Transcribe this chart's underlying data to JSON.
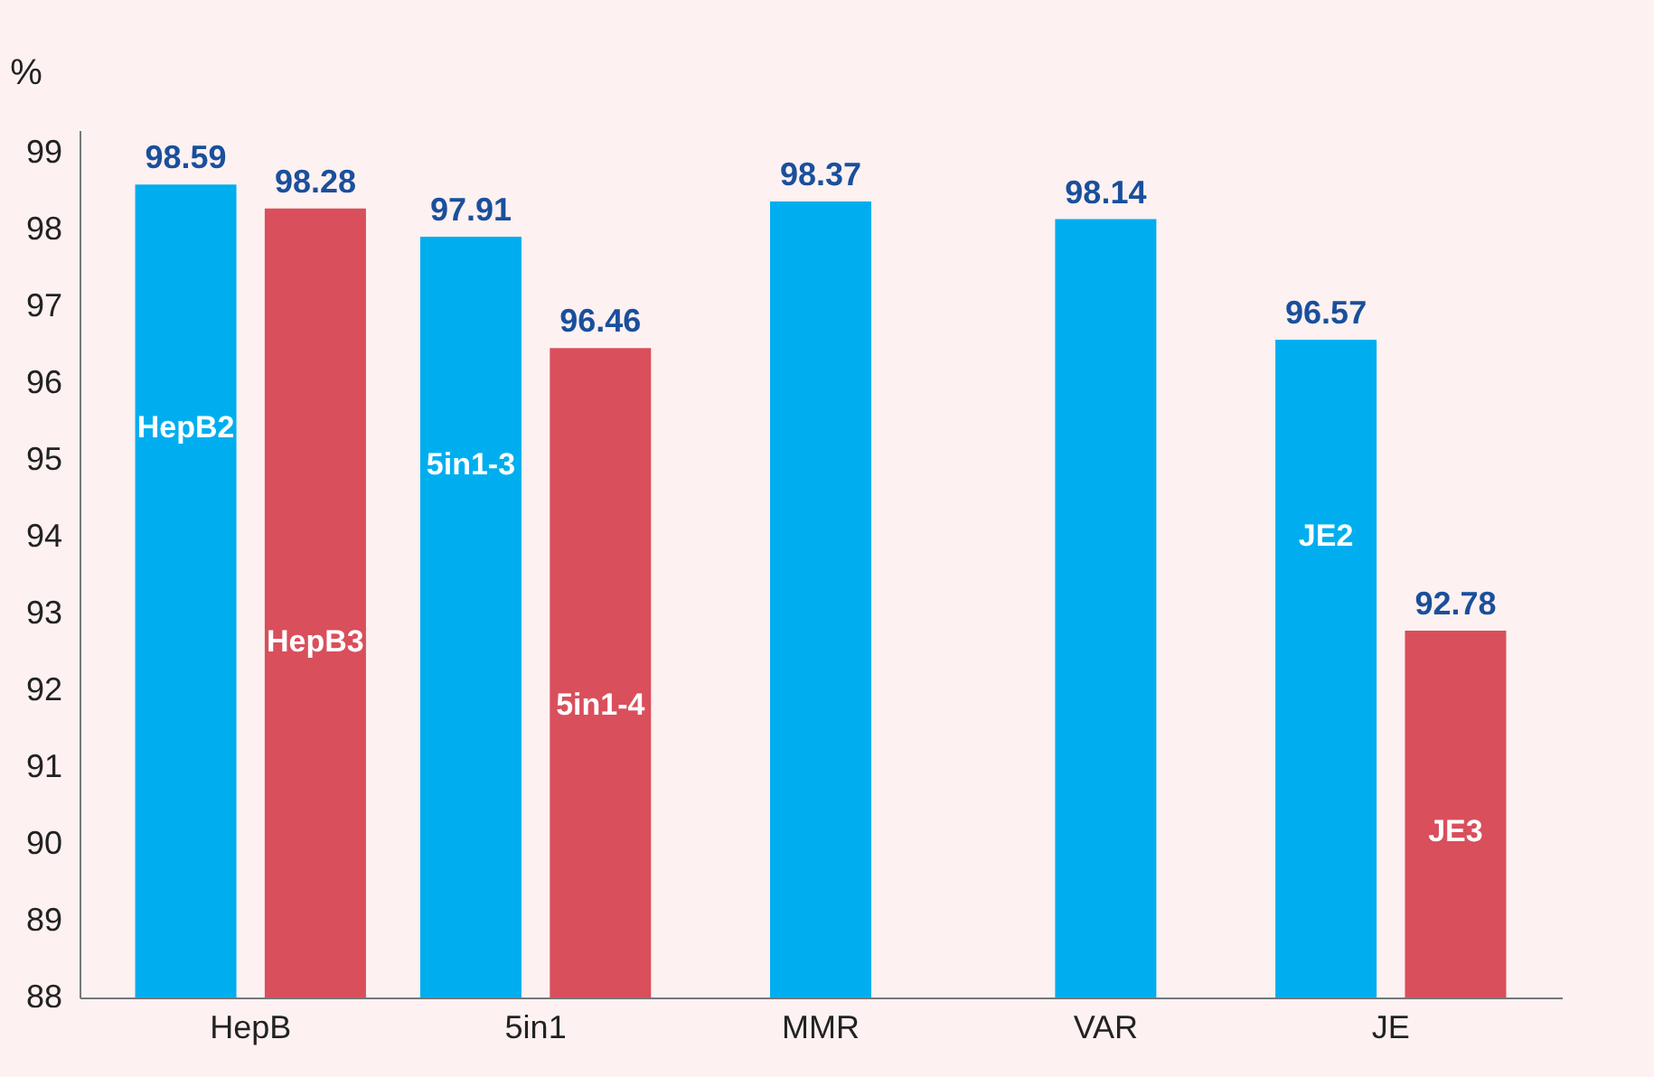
{
  "chart_data": {
    "type": "bar",
    "ylabel": "%",
    "categories": [
      "HepB",
      "5in1",
      "MMR",
      "VAR",
      "JE"
    ],
    "series": [
      {
        "color": "#00aeef",
        "values": [
          98.59,
          97.91,
          98.37,
          98.14,
          96.57
        ]
      },
      {
        "color": "#d94f5c",
        "values": [
          98.28,
          96.46,
          null,
          null,
          92.78
        ]
      }
    ],
    "ylim": [
      88,
      99.3
    ],
    "yticks": [
      88,
      89,
      90,
      91,
      92,
      93,
      94,
      95,
      96,
      97,
      98,
      99
    ],
    "data_labels": true,
    "grid": false,
    "annotations": [
      "HepB2",
      "HepB3",
      "5in1-3",
      "5in1-4",
      "JE2",
      "JE3"
    ]
  }
}
